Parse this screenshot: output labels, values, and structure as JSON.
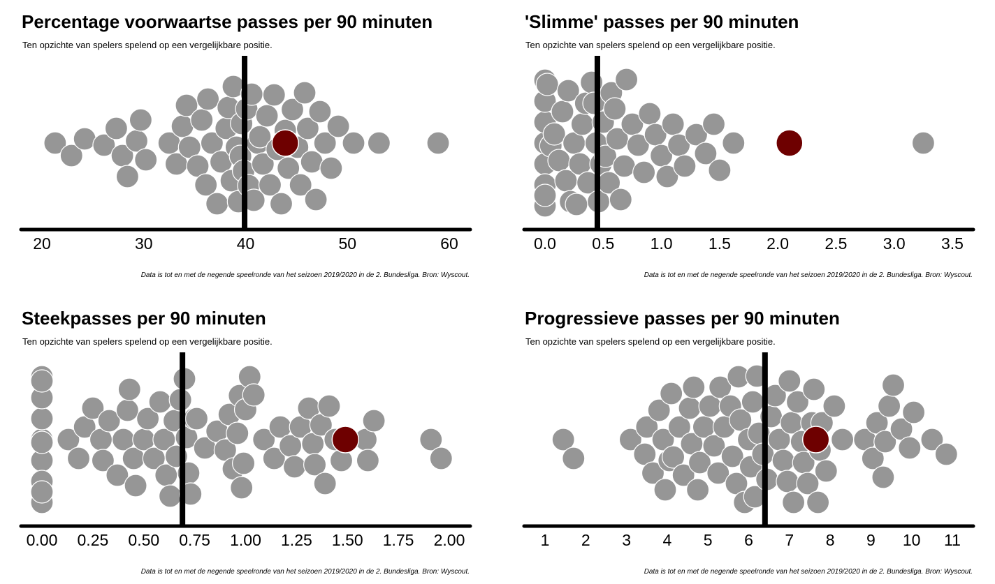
{
  "colors": {
    "point": "#969696",
    "point_stroke": "#ffffff",
    "highlight": "#6e0000",
    "axis": "#000000",
    "reference_line": "#000000"
  },
  "chart_data": [
    {
      "type": "scatter",
      "title": "Percentage voorwaartse passes per 90 minuten",
      "subtitle": "Ten opzichte van spelers spelend op een vergelijkbare positie.",
      "caption": "Data is tot en met de negende speelronde van het seizoen 2019/2020 in de 2. Bundesliga. Bron: Wyscout.",
      "xlim": [
        18,
        62
      ],
      "ticks": [
        20,
        30,
        40,
        50,
        60
      ],
      "tick_labels": [
        "20",
        "30",
        "40",
        "50",
        "60"
      ],
      "reference_line": 39.9,
      "highlight": 43.9,
      "values": [
        21.3,
        22.9,
        24.2,
        26.1,
        27.3,
        27.9,
        28.4,
        29.3,
        29.7,
        30.2,
        32.5,
        33.2,
        33.8,
        34.2,
        34.5,
        35.3,
        35.7,
        36.1,
        36.3,
        36.7,
        37.2,
        37.6,
        38.1,
        38.3,
        38.6,
        38.8,
        39.1,
        39.3,
        39.5,
        39.6,
        39.8,
        40.1,
        40.3,
        40.6,
        40.8,
        41.2,
        41.4,
        41.7,
        42.1,
        42.4,
        42.8,
        43.1,
        43.5,
        43.9,
        44.2,
        44.6,
        45.1,
        45.4,
        45.8,
        46.1,
        46.5,
        46.9,
        47.3,
        47.8,
        48.4,
        49.1,
        50.6,
        53.1,
        58.9
      ]
    },
    {
      "type": "scatter",
      "title": "'Slimme' passes per 90 minuten",
      "subtitle": "Ten opzichte van spelers spelend op een vergelijkbare positie.",
      "caption": "Data is tot en met de negende speelronde van het seizoen 2019/2020 in de 2. Bundesliga. Bron: Wyscout.",
      "xlim": [
        -0.1,
        3.7
      ],
      "ticks": [
        0.0,
        0.5,
        1.0,
        1.5,
        2.0,
        2.5,
        3.0,
        3.5
      ],
      "tick_labels": [
        "0.0",
        "0.5",
        "1.0",
        "1.5",
        "2.0",
        "2.5",
        "3.0",
        "3.5"
      ],
      "reference_line": 0.45,
      "highlight": 2.1,
      "values": [
        0.0,
        0.0,
        0.0,
        0.0,
        0.0,
        0.0,
        0.0,
        0.0,
        0.02,
        0.05,
        0.08,
        0.12,
        0.15,
        0.18,
        0.2,
        0.22,
        0.25,
        0.27,
        0.3,
        0.32,
        0.35,
        0.37,
        0.4,
        0.42,
        0.44,
        0.46,
        0.48,
        0.5,
        0.52,
        0.55,
        0.57,
        0.6,
        0.62,
        0.65,
        0.68,
        0.7,
        0.75,
        0.8,
        0.85,
        0.9,
        0.95,
        1.0,
        1.05,
        1.1,
        1.15,
        1.2,
        1.3,
        1.38,
        1.45,
        1.5,
        1.62,
        3.25
      ]
    },
    {
      "type": "scatter",
      "title": "Steekpasses per 90 minuten",
      "subtitle": "Ten opzichte van spelers spelend op een vergelijkbare positie.",
      "caption": "Data is tot en met de negende speelronde van het seizoen 2019/2020 in de 2. Bundesliga. Bron: Wyscout.",
      "xlim": [
        -0.08,
        2.08
      ],
      "ticks": [
        0.0,
        0.25,
        0.5,
        0.75,
        1.0,
        1.25,
        1.5,
        1.75,
        2.0
      ],
      "tick_labels": [
        "0.00",
        "0.25",
        "0.50",
        "0.75",
        "1.00",
        "1.25",
        "1.50",
        "1.75",
        "2.00"
      ],
      "reference_line": 0.69,
      "highlight": 1.49,
      "values": [
        0.0,
        0.0,
        0.0,
        0.0,
        0.0,
        0.0,
        0.0,
        0.0,
        0.0,
        0.0,
        0.13,
        0.18,
        0.21,
        0.25,
        0.29,
        0.3,
        0.33,
        0.37,
        0.4,
        0.42,
        0.43,
        0.45,
        0.46,
        0.5,
        0.52,
        0.55,
        0.58,
        0.6,
        0.61,
        0.63,
        0.65,
        0.66,
        0.68,
        0.7,
        0.71,
        0.72,
        0.73,
        0.75,
        0.76,
        0.8,
        0.86,
        0.9,
        0.92,
        0.94,
        0.96,
        0.97,
        0.98,
        0.99,
        1.0,
        1.02,
        1.04,
        1.09,
        1.14,
        1.17,
        1.22,
        1.24,
        1.27,
        1.31,
        1.33,
        1.34,
        1.37,
        1.39,
        1.41,
        1.44,
        1.47,
        1.59,
        1.6,
        1.63,
        1.91,
        1.96
      ]
    },
    {
      "type": "scatter",
      "title": "Progressieve passes per 90 minuten",
      "subtitle": "Ten opzichte van spelers spelend op een vergelijkbare positie.",
      "caption": "Data is tot en met de negende speelronde van het seizoen 2019/2020 in de 2. Bundesliga. Bron: Wyscout.",
      "xlim": [
        0.5,
        11.6
      ],
      "ticks": [
        1,
        2,
        3,
        4,
        5,
        6,
        7,
        8,
        9,
        10,
        11
      ],
      "tick_labels": [
        "1",
        "2",
        "3",
        "4",
        "5",
        "6",
        "7",
        "8",
        "9",
        "10",
        "11"
      ],
      "reference_line": 6.4,
      "highlight": 7.65,
      "values": [
        1.45,
        1.7,
        3.1,
        3.45,
        3.5,
        3.65,
        3.8,
        3.9,
        3.95,
        4.05,
        4.1,
        4.15,
        4.3,
        4.4,
        4.55,
        4.6,
        4.65,
        4.75,
        4.8,
        4.9,
        5.05,
        5.15,
        5.25,
        5.3,
        5.4,
        5.55,
        5.6,
        5.7,
        5.75,
        5.8,
        5.9,
        6.0,
        6.05,
        6.1,
        6.15,
        6.2,
        6.25,
        6.35,
        6.45,
        6.55,
        6.65,
        6.75,
        6.85,
        6.95,
        7.0,
        7.05,
        7.1,
        7.2,
        7.3,
        7.35,
        7.45,
        7.55,
        7.6,
        7.7,
        7.75,
        7.8,
        7.9,
        8.1,
        8.3,
        8.85,
        9.05,
        9.15,
        9.3,
        9.35,
        9.45,
        9.55,
        9.75,
        9.95,
        10.05,
        10.5,
        10.85
      ]
    }
  ]
}
